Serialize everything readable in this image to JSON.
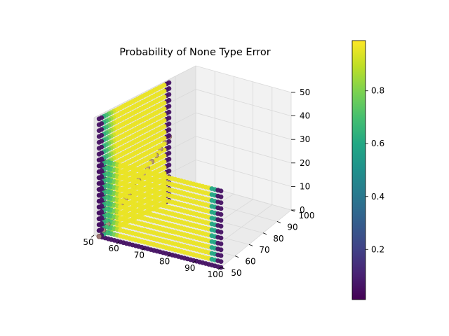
{
  "chart_data": {
    "type": "scatter",
    "title": "Probability of None Type Error",
    "xlabel": "",
    "ylabel": "",
    "zlabel": "",
    "xlim": [
      50,
      100
    ],
    "ylim": [
      50,
      100
    ],
    "zlim": [
      0,
      50
    ],
    "x_ticks": [
      "50",
      "60",
      "70",
      "80",
      "90",
      "100"
    ],
    "y_ticks": [
      "50",
      "60",
      "70",
      "80",
      "90",
      "100"
    ],
    "z_ticks": [
      "0",
      "10",
      "20",
      "30",
      "40",
      "50"
    ],
    "grid": true,
    "colormap": "viridis",
    "colorbar": {
      "range": [
        0.0,
        1.0
      ],
      "ticks": [
        {
          "label": "0.2",
          "value": 0.2
        },
        {
          "label": "0.4",
          "value": 0.4
        },
        {
          "label": "0.6",
          "value": 0.6
        },
        {
          "label": "0.8",
          "value": 0.8
        }
      ]
    },
    "walls": [
      {
        "name": "",
        "plane": "y=50",
        "x": [
          52,
          100
        ],
        "z": [
          0,
          50
        ],
        "edge_x_value": 0.05,
        "interior_value": 0.97
      },
      {
        "name": "",
        "plane": "x=52",
        "y": [
          50,
          85
        ],
        "z": [
          0,
          50
        ],
        "edge_value": 0.05,
        "interior_value": 0.97
      }
    ],
    "diagonal_points": {
      "from": [
        52,
        50,
        0
      ],
      "to": [
        52,
        85,
        27
      ],
      "value": 0.35
    }
  }
}
